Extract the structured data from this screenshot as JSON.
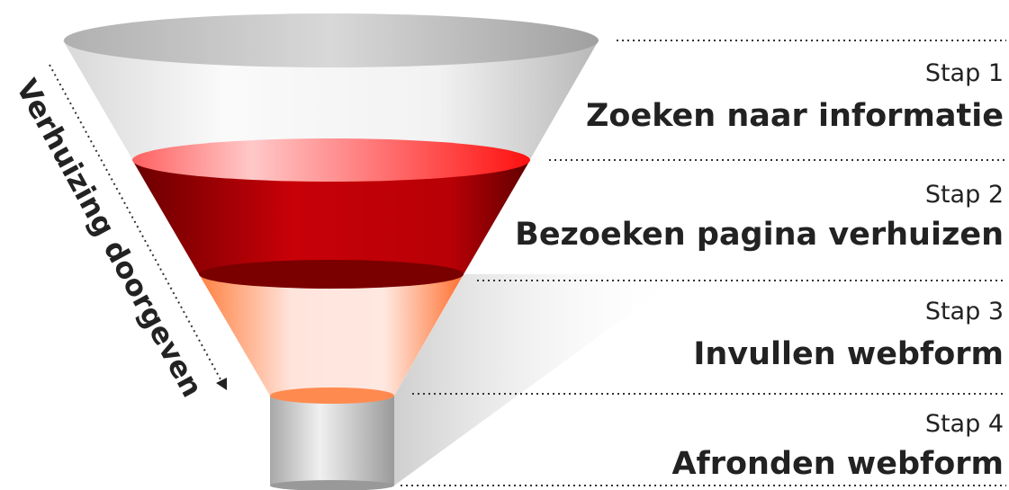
{
  "side_label": "Verhuizing doorgeven",
  "steps": [
    {
      "label": "Stap 1",
      "title": "Zoeken naar informatie"
    },
    {
      "label": "Stap 2",
      "title": "Bezoeken pagina verhuizen"
    },
    {
      "label": "Stap 3",
      "title": "Invullen webform"
    },
    {
      "label": "Stap 4",
      "title": "Afronden webform"
    }
  ]
}
